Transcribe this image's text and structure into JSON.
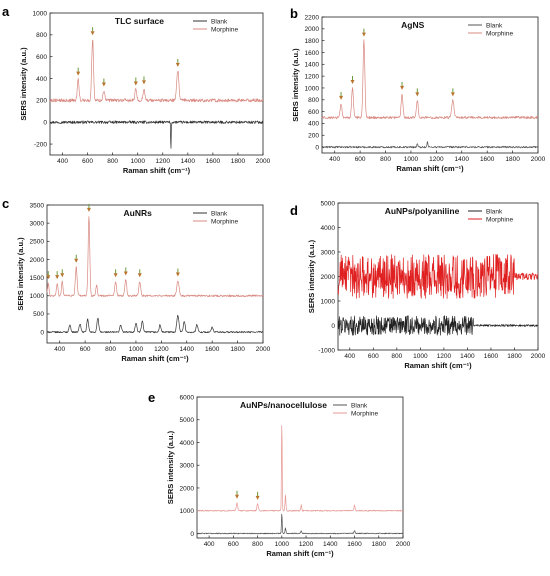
{
  "chart_data": [
    {
      "letter": "a",
      "type": "line",
      "title": "TLC surface",
      "xlabel": "Raman shift",
      "xunit": "(cm⁻¹)",
      "ylabel": "SERS intensity (a.u.)",
      "xlim": [
        300,
        2000
      ],
      "ylim": [
        -300,
        1000
      ],
      "xticks": [
        400,
        600,
        800,
        1000,
        1200,
        1400,
        1600,
        1800,
        2000
      ],
      "yticks": [
        -200,
        0,
        200,
        400,
        600,
        800,
        1000
      ],
      "legend": "top-right",
      "series": [
        {
          "name": "Blank",
          "color": "#333333",
          "baseline": 0,
          "noise": 12,
          "peaks": [
            [
              1265,
              -270,
              3
            ]
          ]
        },
        {
          "name": "Morphine",
          "color": "#d88880",
          "baseline": 200,
          "noise": 15,
          "peaks": [
            [
              525,
              190,
              10
            ],
            [
              640,
              560,
              10
            ],
            [
              730,
              90,
              10
            ],
            [
              985,
              100,
              10
            ],
            [
              1050,
              110,
              10
            ],
            [
              1320,
              270,
              12
            ]
          ]
        }
      ],
      "markers": [
        525,
        640,
        730,
        985,
        1050,
        1320
      ]
    },
    {
      "letter": "b",
      "type": "line",
      "title": "AgNS",
      "xlabel": "Raman shift",
      "xunit": "(cm⁻¹)",
      "ylabel": "SERS intensity (a.u.)",
      "xlim": [
        300,
        2000
      ],
      "ylim": [
        -100,
        2200
      ],
      "xticks": [
        400,
        600,
        800,
        1000,
        1200,
        1400,
        1600,
        1800,
        2000
      ],
      "yticks": [
        0,
        200,
        400,
        600,
        800,
        1000,
        1200,
        1400,
        1600,
        1800,
        2000,
        2200
      ],
      "legend": "top-right",
      "series": [
        {
          "name": "Blank",
          "color": "#555555",
          "baseline": 0,
          "noise": 15,
          "peaks": [
            [
              1050,
              60,
              5
            ],
            [
              1130,
              90,
              5
            ]
          ]
        },
        {
          "name": "Morphine",
          "color": "#d88880",
          "baseline": 500,
          "noise": 20,
          "peaks": [
            [
              450,
              230,
              10
            ],
            [
              540,
              500,
              10
            ],
            [
              630,
              1300,
              10
            ],
            [
              930,
              400,
              10
            ],
            [
              1050,
              290,
              10
            ],
            [
              1330,
              290,
              12
            ]
          ]
        }
      ],
      "markers": [
        450,
        540,
        630,
        930,
        1050,
        1330
      ]
    },
    {
      "letter": "c",
      "type": "line",
      "title": "AuNRs",
      "xlabel": "Raman shift",
      "xunit": "(cm⁻¹)",
      "ylabel": "SERS intensity (a.u.)",
      "xlim": [
        300,
        2000
      ],
      "ylim": [
        -300,
        3500
      ],
      "xticks": [
        400,
        600,
        800,
        1000,
        1200,
        1400,
        1600,
        1800,
        2000
      ],
      "yticks": [
        0,
        500,
        1000,
        1500,
        2000,
        2500,
        3000,
        3500
      ],
      "legend": "top-right",
      "series": [
        {
          "name": "Blank",
          "color": "#333333",
          "baseline": 0,
          "noise": 20,
          "peaks": [
            [
              480,
              200,
              10
            ],
            [
              560,
              230,
              10
            ],
            [
              620,
              350,
              10
            ],
            [
              700,
              380,
              10
            ],
            [
              880,
              200,
              10
            ],
            [
              1000,
              250,
              10
            ],
            [
              1050,
              300,
              10
            ],
            [
              1190,
              200,
              10
            ],
            [
              1330,
              470,
              12
            ],
            [
              1380,
              300,
              10
            ],
            [
              1480,
              200,
              10
            ],
            [
              1600,
              130,
              10
            ]
          ]
        },
        {
          "name": "Morphine",
          "color": "#d88880",
          "baseline": 1000,
          "noise": 25,
          "peaks": [
            [
              310,
              350,
              8
            ],
            [
              380,
              350,
              8
            ],
            [
              420,
              400,
              8
            ],
            [
              530,
              800,
              10
            ],
            [
              630,
              2200,
              9
            ],
            [
              690,
              300,
              8
            ],
            [
              840,
              400,
              10
            ],
            [
              920,
              450,
              10
            ],
            [
              1030,
              400,
              10
            ],
            [
              1330,
              420,
              12
            ]
          ]
        }
      ],
      "markers": [
        310,
        380,
        420,
        530,
        630,
        840,
        920,
        1030,
        1330
      ]
    },
    {
      "letter": "d",
      "type": "line",
      "title": "AuNPs/polyaniline",
      "xlabel": "Raman shift",
      "xunit": "(cm⁻¹)",
      "ylabel": "SERS intensity (a.u.)",
      "xlim": [
        300,
        2000
      ],
      "ylim": [
        -1000,
        5000
      ],
      "xticks": [
        400,
        600,
        800,
        1000,
        1200,
        1400,
        1600,
        1800,
        2000
      ],
      "yticks": [
        -1000,
        0,
        1000,
        2000,
        3000,
        4000,
        5000
      ],
      "legend": "top-right",
      "series": [
        {
          "name": "Blank",
          "color": "#222222",
          "baseline": 0,
          "noise": 400,
          "noiseUntil": 1450,
          "noiseAfter": 40,
          "peaks": []
        },
        {
          "name": "Morphine",
          "color": "#e02020",
          "baseline": 2000,
          "noise": 900,
          "noiseUntil": 1800,
          "noiseAfter": 150,
          "peaks": []
        }
      ],
      "markers": []
    },
    {
      "letter": "e",
      "type": "line",
      "title": "AuNPs/nanocellulose",
      "xlabel": "Raman shift",
      "xunit": "(cm⁻¹)",
      "ylabel": "SERS intensity (a.u.)",
      "xlim": [
        300,
        2000
      ],
      "ylim": [
        -200,
        6000
      ],
      "xticks": [
        400,
        600,
        800,
        1000,
        1200,
        1400,
        1600,
        1800,
        2000
      ],
      "yticks": [
        0,
        1000,
        2000,
        3000,
        4000,
        5000,
        6000
      ],
      "legend": "top-right",
      "series": [
        {
          "name": "Blank",
          "color": "#555555",
          "baseline": 0,
          "noise": 20,
          "peaks": [
            [
              1000,
              900,
              4
            ],
            [
              1030,
              250,
              5
            ],
            [
              1160,
              120,
              6
            ],
            [
              1600,
              120,
              6
            ]
          ]
        },
        {
          "name": "Morphine",
          "color": "#e59a95",
          "baseline": 1000,
          "noise": 25,
          "peaks": [
            [
              630,
              350,
              8
            ],
            [
              800,
              300,
              8
            ],
            [
              1000,
              4000,
              4
            ],
            [
              1030,
              700,
              5
            ],
            [
              1160,
              250,
              6
            ],
            [
              1600,
              250,
              6
            ]
          ]
        }
      ],
      "markers": [
        630,
        800
      ]
    }
  ]
}
